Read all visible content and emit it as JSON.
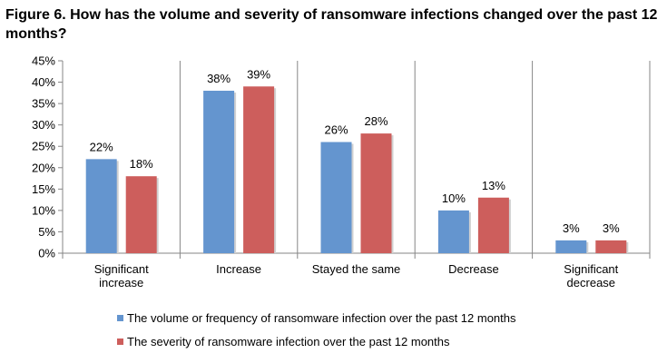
{
  "title": "Figure 6. How has the volume and severity of ransomware infections changed over the past 12 months?",
  "chart_data": {
    "type": "bar",
    "title": "Figure 6. How has the volume and severity of ransomware infections changed over the past 12 months?",
    "categories": [
      "Significant increase",
      "Increase",
      "Stayed the same",
      "Decrease",
      "Significant decrease"
    ],
    "category_lines": [
      [
        "Significant",
        "increase"
      ],
      [
        "Increase"
      ],
      [
        "Stayed the same"
      ],
      [
        "Decrease"
      ],
      [
        "Significant",
        "decrease"
      ]
    ],
    "series": [
      {
        "name": "The volume or frequency of ransomware infection over the past 12 months",
        "color": "#6495CF",
        "values": [
          22,
          38,
          26,
          10,
          3
        ],
        "labels": [
          "22%",
          "38%",
          "26%",
          "10%",
          "3%"
        ]
      },
      {
        "name": "The severity of ransomware infection over the past 12 months",
        "color": "#CD5E5C",
        "values": [
          18,
          39,
          28,
          13,
          3
        ],
        "labels": [
          "18%",
          "39%",
          "28%",
          "13%",
          "3%"
        ]
      }
    ],
    "ylim": [
      0,
      45
    ],
    "yticks": [
      0,
      5,
      10,
      15,
      20,
      25,
      30,
      35,
      40,
      45
    ],
    "ytick_labels": [
      "0%",
      "5%",
      "10%",
      "15%",
      "20%",
      "25%",
      "30%",
      "35%",
      "40%",
      "45%"
    ],
    "xlabel": "",
    "ylabel": "",
    "legend_position": "bottom",
    "grid": false
  }
}
